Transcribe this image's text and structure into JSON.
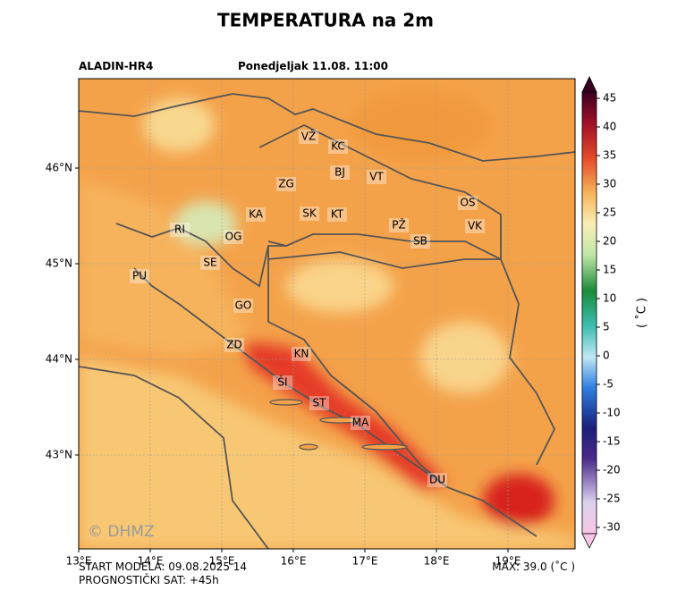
{
  "title": "TEMPERATURA na 2m",
  "header": {
    "model": "ALADIN-HR4",
    "valid": "Ponedjeljak 11.08. 11:00"
  },
  "map": {
    "lon_ticks": [
      "13°E",
      "14°E",
      "15°E",
      "16°E",
      "17°E",
      "18°E",
      "19°E"
    ],
    "lat_ticks": [
      "46°N",
      "45°N",
      "44°N",
      "43°N"
    ],
    "cities": [
      "VŽ",
      "KC",
      "BJ",
      "VT",
      "ZG",
      "OS",
      "KA",
      "SK",
      "KT",
      "PŽ",
      "VK",
      "RI",
      "OG",
      "SB",
      "SE",
      "PU",
      "GO",
      "ZD",
      "KN",
      "ŠI",
      "ST",
      "MA",
      "DU"
    ],
    "watermark": "© DHMZ"
  },
  "colorbar": {
    "range": [
      -30,
      45
    ],
    "ticks": [
      45,
      40,
      35,
      30,
      25,
      20,
      15,
      10,
      5,
      0,
      -5,
      -10,
      -15,
      -20,
      -25,
      -30
    ],
    "unit": "( ˚C )"
  },
  "footer": {
    "start": "START MODELA: 09.08.2025 14",
    "lead": "PROGNOSTIČKI SAT: +45h",
    "max": "MAX: 39.0 (˚C )"
  }
}
